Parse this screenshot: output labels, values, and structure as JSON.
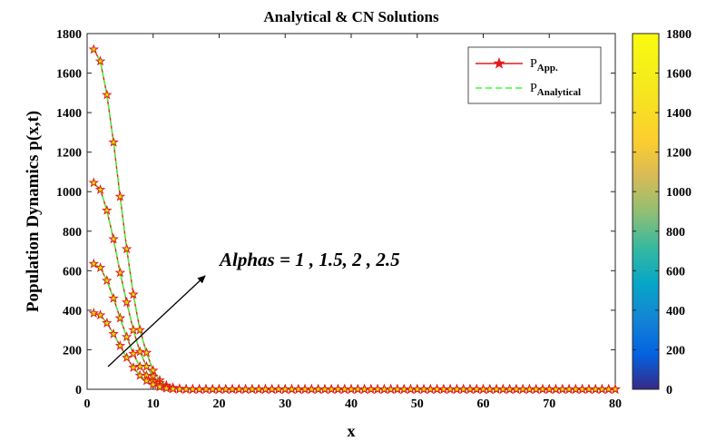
{
  "chart_data": {
    "type": "line",
    "title": "Analytical & CN Solutions",
    "xlabel": "x",
    "ylabel": "Population Dynamics p(x,t)",
    "xlim": [
      0,
      80
    ],
    "ylim": [
      0,
      1800
    ],
    "xticks": [
      "0",
      "10",
      "20",
      "30",
      "40",
      "50",
      "60",
      "70",
      "80"
    ],
    "yticks": [
      "0",
      "200",
      "400",
      "600",
      "800",
      "1000",
      "1200",
      "1400",
      "1600",
      "1800"
    ],
    "legend": {
      "position": "top-right",
      "entries": [
        {
          "base": "P",
          "sub": "App.",
          "color": "#e31a1c",
          "style": "solid-star"
        },
        {
          "base": "P",
          "sub": "Analytical",
          "color": "#33ff33",
          "style": "dashed"
        }
      ]
    },
    "annotation": "Alphas = 1 , 1.5, 2 , 2.5",
    "colorbar": {
      "ticks": [
        "0",
        "200",
        "400",
        "600",
        "800",
        "1000",
        "1200",
        "1400",
        "1600",
        "1800"
      ],
      "range": [
        0,
        1800
      ],
      "colormap": "parula"
    },
    "x": [
      1,
      2,
      3,
      4,
      5,
      6,
      7,
      8,
      9,
      10,
      11,
      12,
      13,
      14,
      15,
      16,
      17,
      18,
      19,
      20,
      21,
      22,
      23,
      24,
      25,
      26,
      27,
      28,
      29,
      30,
      31,
      32,
      33,
      34,
      35,
      36,
      37,
      38,
      39,
      40,
      41,
      42,
      43,
      44,
      45,
      46,
      47,
      48,
      49,
      50,
      51,
      52,
      53,
      54,
      55,
      56,
      57,
      58,
      59,
      60,
      61,
      62,
      63,
      64,
      65,
      66,
      67,
      68,
      69,
      70,
      71,
      72,
      73,
      74,
      75,
      76,
      77,
      78,
      79,
      80
    ],
    "series": [
      {
        "values": [
          1720,
          1660,
          1490,
          1250,
          975,
          710,
          480,
          300,
          185,
          95,
          45,
          20,
          8,
          3,
          1,
          0,
          0,
          0,
          0,
          0,
          0,
          0,
          0,
          0,
          0,
          0,
          0,
          0,
          0,
          0,
          0,
          0,
          0,
          0,
          0,
          0,
          0,
          0,
          0,
          0,
          0,
          0,
          0,
          0,
          0,
          0,
          0,
          0,
          0,
          0,
          0,
          0,
          0,
          0,
          0,
          0,
          0,
          0,
          0,
          0,
          0,
          0,
          0,
          0,
          0,
          0,
          0,
          0,
          0,
          0,
          0,
          0,
          0,
          0,
          0,
          0,
          0,
          0,
          0,
          0
        ]
      },
      {
        "values": [
          1045,
          1010,
          905,
          760,
          590,
          440,
          300,
          190,
          115,
          65,
          32,
          15,
          6,
          2,
          1,
          0,
          0,
          0,
          0,
          0,
          0,
          0,
          0,
          0,
          0,
          0,
          0,
          0,
          0,
          0,
          0,
          0,
          0,
          0,
          0,
          0,
          0,
          0,
          0,
          0,
          0,
          0,
          0,
          0,
          0,
          0,
          0,
          0,
          0,
          0,
          0,
          0,
          0,
          0,
          0,
          0,
          0,
          0,
          0,
          0,
          0,
          0,
          0,
          0,
          0,
          0,
          0,
          0,
          0,
          0,
          0,
          0,
          0,
          0,
          0,
          0,
          0,
          0,
          0,
          0
        ]
      },
      {
        "values": [
          635,
          615,
          550,
          460,
          360,
          265,
          180,
          115,
          70,
          40,
          20,
          9,
          4,
          1,
          0,
          0,
          0,
          0,
          0,
          0,
          0,
          0,
          0,
          0,
          0,
          0,
          0,
          0,
          0,
          0,
          0,
          0,
          0,
          0,
          0,
          0,
          0,
          0,
          0,
          0,
          0,
          0,
          0,
          0,
          0,
          0,
          0,
          0,
          0,
          0,
          0,
          0,
          0,
          0,
          0,
          0,
          0,
          0,
          0,
          0,
          0,
          0,
          0,
          0,
          0,
          0,
          0,
          0,
          0,
          0,
          0,
          0,
          0,
          0,
          0,
          0,
          0,
          0,
          0,
          0
        ]
      },
      {
        "values": [
          385,
          375,
          335,
          280,
          220,
          160,
          110,
          70,
          43,
          24,
          12,
          5,
          2,
          1,
          0,
          0,
          0,
          0,
          0,
          0,
          0,
          0,
          0,
          0,
          0,
          0,
          0,
          0,
          0,
          0,
          0,
          0,
          0,
          0,
          0,
          0,
          0,
          0,
          0,
          0,
          0,
          0,
          0,
          0,
          0,
          0,
          0,
          0,
          0,
          0,
          0,
          0,
          0,
          0,
          0,
          0,
          0,
          0,
          0,
          0,
          0,
          0,
          0,
          0,
          0,
          0,
          0,
          0,
          0,
          0,
          0,
          0,
          0,
          0,
          0,
          0,
          0,
          0,
          0,
          0
        ]
      }
    ]
  }
}
